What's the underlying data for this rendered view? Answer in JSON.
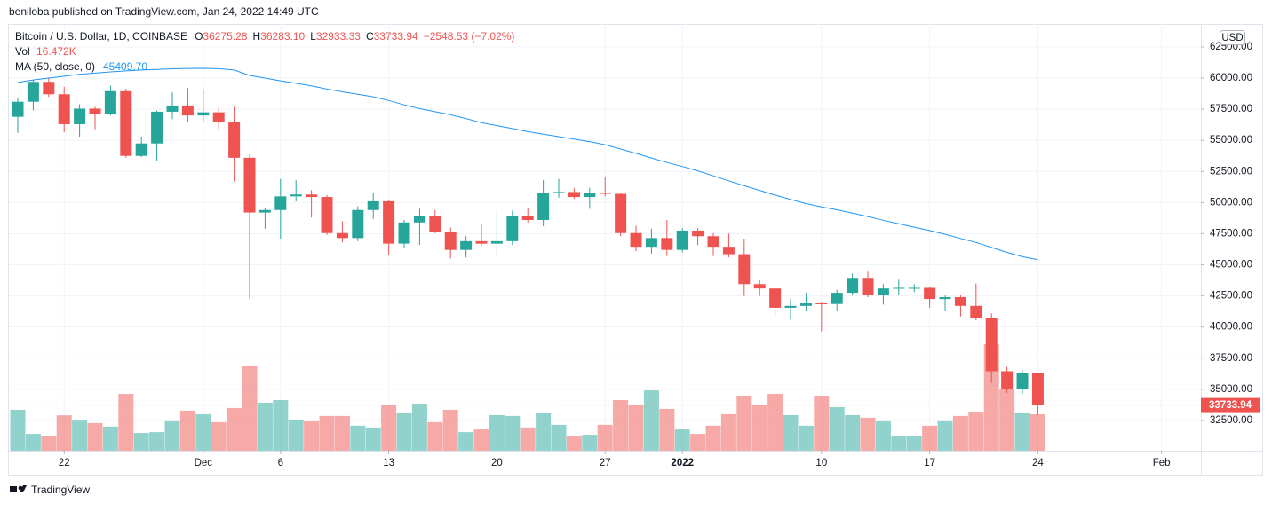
{
  "header": {
    "published": "beniloba published on TradingView.com, Jan 24, 2022 14:49 UTC"
  },
  "legend": {
    "symbol": "Bitcoin / U.S. Dollar, 1D, COINBASE",
    "fields": [
      {
        "label": "O",
        "value": "36275.28"
      },
      {
        "label": "H",
        "value": "36283.10"
      },
      {
        "label": "L",
        "value": "32933.33"
      },
      {
        "label": "C",
        "value": "33733.94"
      }
    ],
    "change": "−2548.53 (−7.02%)",
    "vol_label": "Vol",
    "vol_value": "16.472K",
    "ma_label": "MA (50, close, 0)",
    "ma_value": "45409.70"
  },
  "currency": "USD",
  "footer": {
    "brand": "TradingView"
  },
  "chart_data": {
    "type": "candlestick",
    "up_color": "#26a69a",
    "down_color": "#ef5350",
    "xlim": [
      -0.575,
      76.55
    ],
    "xticks": [
      {
        "value": 3,
        "label": "22"
      },
      {
        "value": 12,
        "label": "Dec"
      },
      {
        "value": 17,
        "label": "6"
      },
      {
        "value": 24,
        "label": "13"
      },
      {
        "value": 31,
        "label": "20"
      },
      {
        "value": 38,
        "label": "27"
      },
      {
        "value": 43,
        "label": "2022"
      },
      {
        "value": 52,
        "label": "10"
      },
      {
        "value": 59,
        "label": "17"
      },
      {
        "value": 66,
        "label": "24"
      },
      {
        "value": 74,
        "label": "Feb"
      }
    ],
    "ylim": [
      30070,
      64350
    ],
    "yticks": [
      {
        "value": 32500,
        "label": "32500.00"
      },
      {
        "value": 35000,
        "label": "35000.00"
      },
      {
        "value": 37500,
        "label": "37500.00"
      },
      {
        "value": 40000,
        "label": "40000.00"
      },
      {
        "value": 42500,
        "label": "42500.00"
      },
      {
        "value": 45000,
        "label": "45000.00"
      },
      {
        "value": 47500,
        "label": "47500.00"
      },
      {
        "value": 50000,
        "label": "50000.00"
      },
      {
        "value": 52500,
        "label": "52500.00"
      },
      {
        "value": 55000,
        "label": "55000.00"
      },
      {
        "value": 57500,
        "label": "57500.00"
      },
      {
        "value": 60000,
        "label": "60000.00"
      },
      {
        "value": 62500,
        "label": "62500.00"
      }
    ],
    "grid": true,
    "open": [
      56890,
      58100,
      59700,
      58700,
      56300,
      57550,
      57150,
      58950,
      53750,
      54750,
      57300,
      57800,
      57000,
      57250,
      56500,
      53600,
      49200,
      49400,
      50500,
      50650,
      50450,
      47550,
      47150,
      49400,
      50100,
      46700,
      48400,
      48900,
      47650,
      46200,
      46900,
      46700,
      46900,
      48950,
      48600,
      50800,
      50850,
      50450,
      50800,
      50700,
      47550,
      46450,
      47150,
      46200,
      47750,
      47300,
      46450,
      45850,
      43450,
      43100,
      41550,
      41700,
      41900,
      41850,
      42750,
      43950,
      42600,
      43100,
      43150,
      43150,
      42250,
      42400,
      41700,
      40700,
      36450,
      35050,
      36275.28
    ],
    "high": [
      58370,
      59850,
      60050,
      59300,
      57900,
      57700,
      59400,
      59150,
      55300,
      57400,
      58850,
      59200,
      59100,
      57600,
      57700,
      53900,
      49600,
      51900,
      51800,
      51000,
      50600,
      48500,
      49700,
      50800,
      50200,
      48600,
      49500,
      49400,
      48000,
      47300,
      48300,
      49300,
      49350,
      49550,
      51800,
      51900,
      51150,
      51200,
      52100,
      50800,
      48150,
      47900,
      48600,
      47950,
      47950,
      47550,
      47500,
      47100,
      43750,
      43200,
      42300,
      42750,
      42050,
      43000,
      44300,
      44450,
      43450,
      43800,
      43450,
      43200,
      42600,
      42550,
      43500,
      41100,
      36800,
      36550,
      36283.1
    ],
    "low": [
      55600,
      57400,
      58500,
      55650,
      55300,
      55900,
      57000,
      53600,
      53650,
      53350,
      56700,
      56500,
      56500,
      55900,
      51700,
      42300,
      47900,
      47100,
      50100,
      48800,
      47400,
      46800,
      46900,
      48700,
      45800,
      46400,
      46600,
      47550,
      45500,
      45600,
      46500,
      45600,
      46600,
      48400,
      48100,
      50400,
      50300,
      49500,
      50500,
      47300,
      46100,
      45900,
      45700,
      46000,
      46600,
      45700,
      45600,
      42500,
      42500,
      40950,
      40600,
      41300,
      39650,
      41300,
      42600,
      42400,
      41800,
      42600,
      42800,
      41550,
      41300,
      40850,
      40550,
      35500,
      34700,
      34650,
      32933.33
    ],
    "close": [
      58100,
      59700,
      58700,
      56300,
      57550,
      57150,
      58950,
      53750,
      54750,
      57300,
      57800,
      57000,
      57250,
      56500,
      53600,
      49200,
      49400,
      50500,
      50650,
      50450,
      47550,
      47150,
      49400,
      50100,
      46700,
      48400,
      48900,
      47650,
      46200,
      46900,
      46700,
      46900,
      48950,
      48600,
      50800,
      50850,
      50450,
      50800,
      50700,
      47550,
      46450,
      47150,
      46200,
      47750,
      47300,
      46450,
      45850,
      43450,
      43100,
      41550,
      41700,
      41900,
      41850,
      42750,
      43950,
      42600,
      43100,
      43150,
      43150,
      42250,
      42400,
      41700,
      40700,
      36450,
      35050,
      36280,
      33733.94
    ],
    "volume": [
      18.5,
      7.6,
      6.8,
      16,
      14,
      12.5,
      10.9,
      25.7,
      8,
      8.4,
      13.7,
      18.1,
      16.5,
      12.9,
      19.3,
      38.6,
      21.7,
      22.9,
      14.1,
      13.3,
      15.7,
      15.7,
      11.3,
      10.5,
      20.5,
      17.3,
      21.3,
      12.9,
      18.5,
      8.4,
      9.6,
      16.1,
      15.7,
      10.5,
      16.9,
      11.7,
      6.4,
      7.2,
      11.7,
      22.9,
      20.5,
      27.3,
      18.9,
      9.6,
      7.6,
      11.3,
      16.5,
      24.9,
      20.5,
      25.7,
      16.1,
      11.3,
      24.9,
      19.7,
      16.1,
      14.9,
      13.7,
      6.8,
      6.8,
      11.3,
      13.7,
      15.7,
      17.7,
      48.2,
      27.7,
      17.3,
      16.472
    ],
    "ma": {
      "color": "#2196f3",
      "values": [
        59650,
        59850,
        60000,
        60150,
        60300,
        60400,
        60500,
        60580,
        60650,
        60700,
        60750,
        60780,
        60790,
        60760,
        60650,
        60220,
        60000,
        59780,
        59580,
        59380,
        59120,
        58900,
        58700,
        58500,
        58200,
        57850,
        57550,
        57300,
        57050,
        56750,
        56420,
        56180,
        55950,
        55700,
        55500,
        55300,
        55100,
        54900,
        54650,
        54300,
        53950,
        53580,
        53220,
        52900,
        52550,
        52150,
        51750,
        51350,
        50980,
        50600,
        50250,
        49920,
        49650,
        49420,
        49150,
        48880,
        48580,
        48300,
        48020,
        47750,
        47450,
        47120,
        46800,
        46400,
        46000,
        45650,
        45409.7
      ]
    }
  }
}
